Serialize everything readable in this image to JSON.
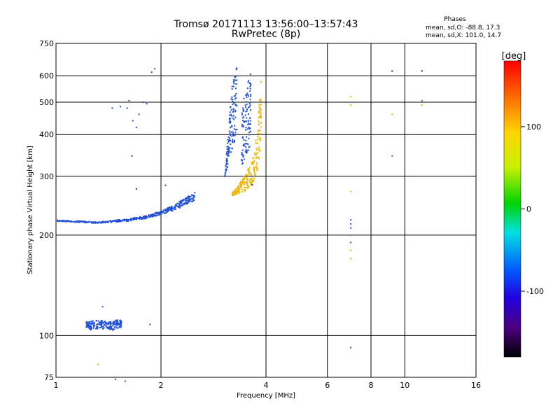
{
  "header": {
    "title": "Tromsø 20171113 13:56:00–13:57:43",
    "subtitle": "RwPretec (8p)",
    "phase_heading": "Phases",
    "phase_o_stats": "mean, sd,O: -88.8, 17.3",
    "phase_x_stats": "mean, sd,X: 101.0, 14.7"
  },
  "colorbar": {
    "unit_label": "[deg]",
    "tick_labels": [
      "100",
      "0",
      "-100"
    ],
    "tick_values": [
      100,
      0,
      -100
    ],
    "range": [
      -180,
      180
    ]
  },
  "colors": {
    "o_mode": "#1f4fd8",
    "x_mode": "#f0b400",
    "low_trace": "#1f6fe8",
    "grid": "#000000"
  },
  "chart_data": {
    "type": "scatter",
    "title": "Tromsø 20171113 13:56:00–13:57:43",
    "subtitle": "RwPretec (8p)",
    "xlabel": "Frequency [MHz]",
    "ylabel": "Stationary phase Virtual Height [km]",
    "x_scale": "log",
    "y_scale": "log",
    "xlim": [
      1,
      16
    ],
    "ylim": [
      75,
      750
    ],
    "x_ticks": [
      1,
      2,
      4,
      6,
      8,
      10,
      16
    ],
    "x_tick_labels": [
      "1",
      "2",
      "4",
      "6",
      "8",
      "10",
      "16"
    ],
    "y_ticks": [
      75,
      100,
      200,
      300,
      400,
      500,
      600,
      750
    ],
    "y_tick_labels": [
      "75",
      "100",
      "200",
      "300",
      "400",
      "500",
      "600",
      "750"
    ],
    "grid": true,
    "colorbar_label": "[deg]",
    "series": [
      {
        "mode": "O",
        "color": "#1f4fd8",
        "phase_mean": -88.8,
        "segments": [
          {
            "x": [
              3.05,
              3.1,
              3.15,
              3.2,
              3.25,
              3.3
            ],
            "y_low": [
              300,
              318,
              340,
              360,
              380,
              400
            ],
            "y_high": [
              300,
              380,
              470,
              560,
              610,
              640
            ]
          },
          {
            "x": [
              3.4,
              3.45,
              3.52,
              3.58,
              3.62
            ],
            "y_low": [
              320,
              330,
              345,
              360,
              380
            ],
            "y_high": [
              460,
              520,
              560,
              600,
              620
            ]
          },
          {
            "x": [
              1.0,
              1.1,
              1.2,
              1.3,
              1.4,
              1.5,
              1.6,
              1.7,
              1.8,
              1.9,
              2.0,
              2.1,
              2.2,
              2.3,
              2.4,
              2.5
            ],
            "y_low": [
              220,
              219,
              218,
              217,
              218,
              219,
              220,
              222,
              224,
              227,
              230,
              234,
              238,
              243,
              248,
              255
            ],
            "y_high": [
              222,
              221,
              220,
              219,
              220,
              222,
              224,
              226,
              228,
              232,
              236,
              242,
              248,
              255,
              262,
              268
            ]
          },
          {
            "x": [
              1.22,
              1.25,
              1.3,
              1.35,
              1.4,
              1.45,
              1.5,
              1.54
            ],
            "y_low": [
              106,
              104,
              104,
              105,
              104,
              103,
              105,
              106
            ],
            "y_high": [
              110,
              110,
              112,
              111,
              110,
              110,
              112,
              111
            ]
          }
        ],
        "isolated": [
          [
            1.88,
            615
          ],
          [
            1.92,
            630
          ],
          [
            1.45,
            480
          ],
          [
            1.53,
            485
          ],
          [
            1.6,
            480
          ],
          [
            1.62,
            505
          ],
          [
            1.66,
            440
          ],
          [
            1.7,
            420
          ],
          [
            1.73,
            460
          ],
          [
            1.78,
            500
          ],
          [
            1.82,
            495
          ],
          [
            1.65,
            345
          ],
          [
            1.86,
            108
          ],
          [
            1.36,
            122
          ],
          [
            7.0,
            92
          ],
          [
            7.0,
            222
          ],
          [
            7.0,
            216
          ],
          [
            7.0,
            210
          ],
          [
            7.0,
            190
          ],
          [
            1.58,
            73
          ],
          [
            1.48,
            74
          ]
        ]
      },
      {
        "mode": "X",
        "color": "#f0b400",
        "phase_mean": 101.0,
        "segments": [
          {
            "x": [
              3.2,
              3.3,
              3.4,
              3.5,
              3.6,
              3.7,
              3.78,
              3.84,
              3.88
            ],
            "y_low": [
              262,
              265,
              268,
              272,
              278,
              290,
              310,
              350,
              420
            ],
            "y_high": [
              268,
              278,
              292,
              305,
              325,
              355,
              420,
              520,
              615
            ]
          }
        ],
        "isolated": [
          [
            7.0,
            520
          ],
          [
            7.0,
            490
          ],
          [
            7.0,
            270
          ],
          [
            7.0,
            180
          ],
          [
            7.0,
            170
          ],
          [
            9.2,
            460
          ],
          [
            11.2,
            490
          ],
          [
            1.32,
            82
          ]
        ]
      },
      {
        "mode": "other",
        "color": "#2e8b57",
        "phase_mean": null,
        "segments": [],
        "isolated": [
          [
            9.2,
            345
          ],
          [
            6.0,
            495
          ],
          [
            7.0,
            200
          ],
          [
            11.2,
            505
          ]
        ]
      },
      {
        "mode": "other",
        "color": "#5a1080",
        "phase_mean": null,
        "segments": [],
        "isolated": [
          [
            9.2,
            620
          ],
          [
            11.2,
            620
          ],
          [
            1.7,
            275
          ],
          [
            2.06,
            282
          ],
          [
            3.65,
            283
          ],
          [
            1.8,
            228
          ]
        ]
      }
    ]
  }
}
